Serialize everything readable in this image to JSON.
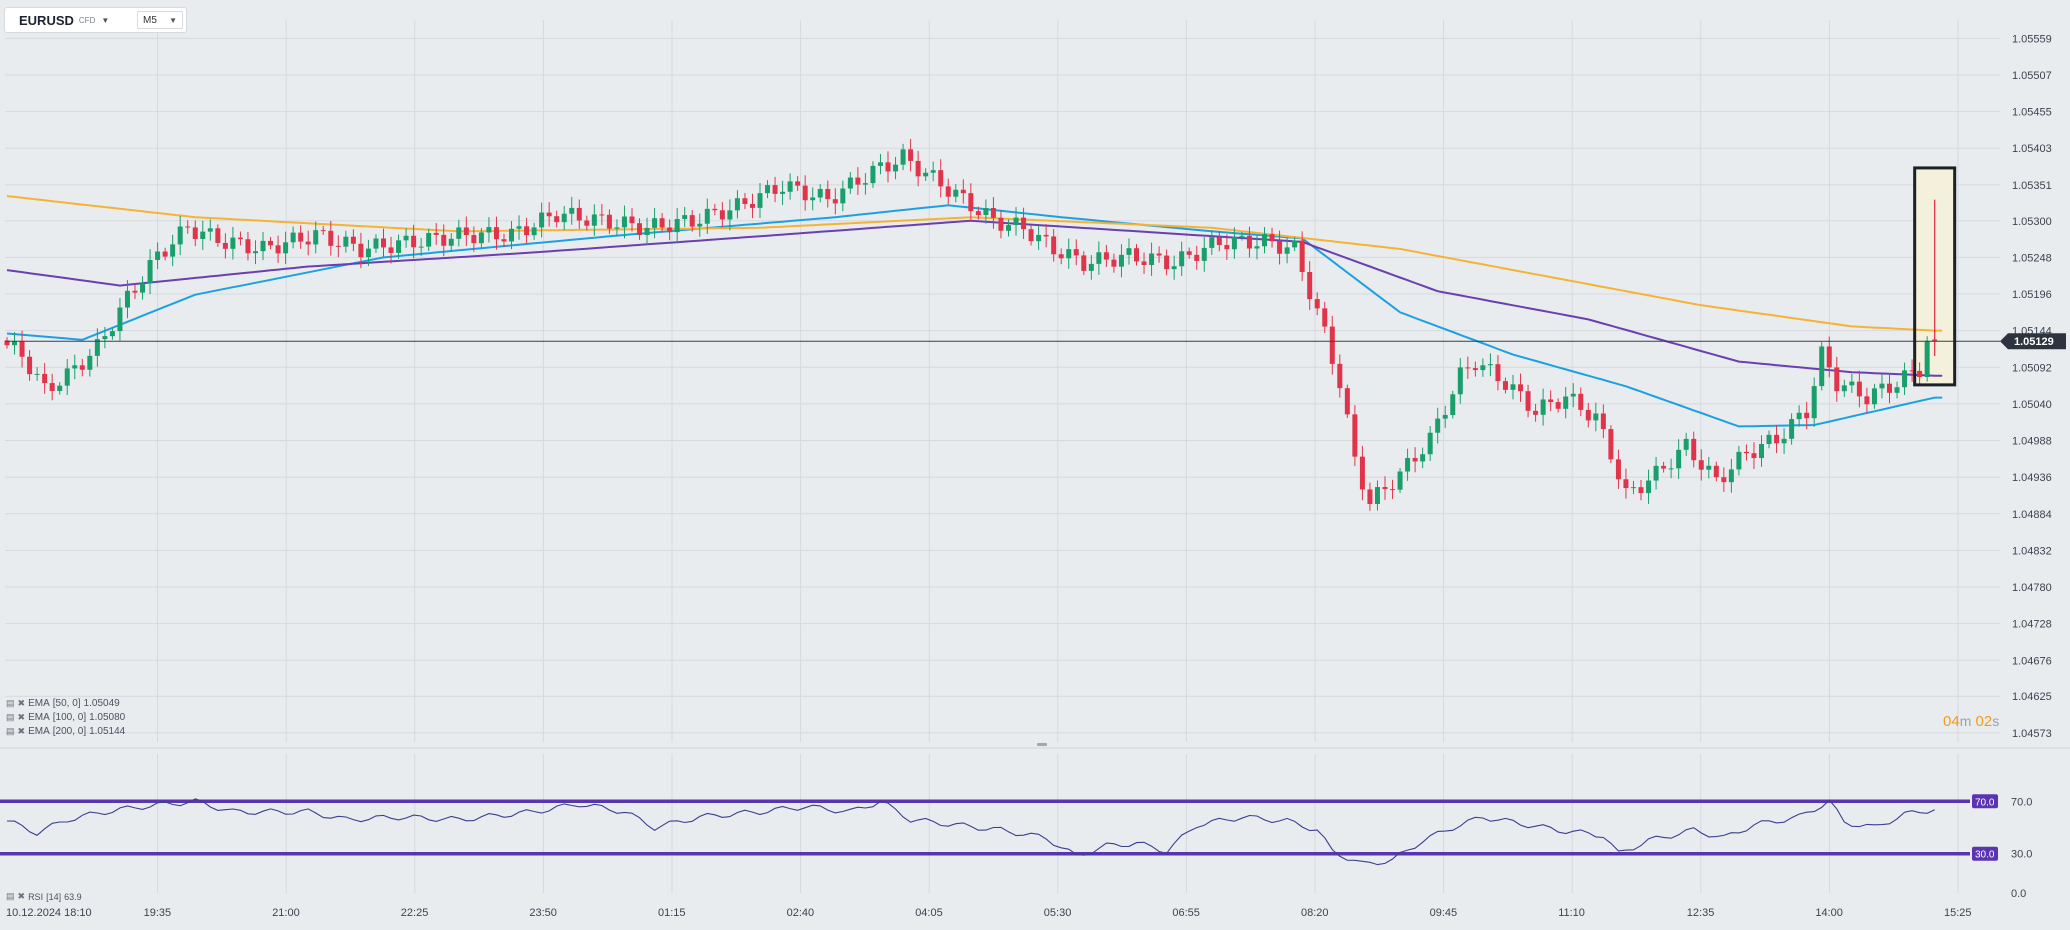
{
  "toolbar": {
    "symbol": "EURUSD",
    "instrument_type": "CFD",
    "timeframe": "M5",
    "symbol_dropdown_icon": "caret-down-icon",
    "timeframe_dropdown_icon": "caret-down-icon"
  },
  "legend": [
    {
      "name": "EMA",
      "params": "[50, 0]",
      "value": "1.05049",
      "color": "#1ba1e2"
    },
    {
      "name": "EMA",
      "params": "[100, 0]",
      "value": "1.05080",
      "color": "#6a3fb0"
    },
    {
      "name": "EMA",
      "params": "[200, 0]",
      "value": "1.05144",
      "color": "#f5b335"
    }
  ],
  "rsi_legend": {
    "name": "RSI",
    "params": "[14]",
    "value": "63.9"
  },
  "countdown": {
    "minutes": "04",
    "min_unit": "m",
    "seconds": "02",
    "sec_unit": "s"
  },
  "colors": {
    "up": "#1a9e6b",
    "down": "#e0344a",
    "rsi_line": "#3a3f8f",
    "rsi_level": "#5b34b0",
    "price_tag": "#2d3440",
    "highlight": "#f3f1dc"
  },
  "chart_data": {
    "type": "candlestick",
    "symbol": "EURUSD",
    "timeframe": "M5",
    "x_tick_labels": [
      "10.12.2024 18:10",
      "19:35",
      "21:00",
      "22:25",
      "23:50",
      "01:15",
      "02:40",
      "04:05",
      "05:30",
      "06:55",
      "08:20",
      "09:45",
      "11:10",
      "12:35",
      "14:00",
      "15:25"
    ],
    "y_tick_labels": [
      "1.05559",
      "1.05507",
      "1.05455",
      "1.05403",
      "1.05351",
      "1.05300",
      "1.05248",
      "1.05196",
      "1.05144",
      "1.05092",
      "1.05040",
      "1.04988",
      "1.04936",
      "1.04884",
      "1.04832",
      "1.04780",
      "1.04728",
      "1.04676",
      "1.04625",
      "1.04573"
    ],
    "ylim": [
      1.0456,
      1.05585
    ],
    "current_price": "1.05129",
    "price_anchors": [
      {
        "t": 0,
        "p": 1.0513
      },
      {
        "t": 3,
        "p": 1.0511
      },
      {
        "t": 6,
        "p": 1.0506
      },
      {
        "t": 9,
        "p": 1.0508
      },
      {
        "t": 13,
        "p": 1.0512
      },
      {
        "t": 17,
        "p": 1.0519
      },
      {
        "t": 21,
        "p": 1.0525
      },
      {
        "t": 25,
        "p": 1.0529
      },
      {
        "t": 30,
        "p": 1.0527
      },
      {
        "t": 35,
        "p": 1.0526
      },
      {
        "t": 42,
        "p": 1.0528
      },
      {
        "t": 48,
        "p": 1.0526
      },
      {
        "t": 55,
        "p": 1.0527
      },
      {
        "t": 62,
        "p": 1.0528
      },
      {
        "t": 68,
        "p": 1.0528
      },
      {
        "t": 74,
        "p": 1.0531
      },
      {
        "t": 80,
        "p": 1.053
      },
      {
        "t": 86,
        "p": 1.0529
      },
      {
        "t": 92,
        "p": 1.053
      },
      {
        "t": 98,
        "p": 1.0532
      },
      {
        "t": 104,
        "p": 1.0535
      },
      {
        "t": 110,
        "p": 1.0533
      },
      {
        "t": 116,
        "p": 1.0537
      },
      {
        "t": 120,
        "p": 1.0539
      },
      {
        "t": 124,
        "p": 1.0536
      },
      {
        "t": 128,
        "p": 1.0533
      },
      {
        "t": 132,
        "p": 1.053
      },
      {
        "t": 136,
        "p": 1.0529
      },
      {
        "t": 140,
        "p": 1.0526
      },
      {
        "t": 144,
        "p": 1.0524
      },
      {
        "t": 150,
        "p": 1.0525
      },
      {
        "t": 156,
        "p": 1.0524
      },
      {
        "t": 162,
        "p": 1.0527
      },
      {
        "t": 168,
        "p": 1.0527
      },
      {
        "t": 172,
        "p": 1.0526
      },
      {
        "t": 174,
        "p": 1.052
      },
      {
        "t": 176,
        "p": 1.0514
      },
      {
        "t": 178,
        "p": 1.0507
      },
      {
        "t": 180,
        "p": 1.0496
      },
      {
        "t": 182,
        "p": 1.049
      },
      {
        "t": 186,
        "p": 1.0494
      },
      {
        "t": 190,
        "p": 1.0499
      },
      {
        "t": 194,
        "p": 1.0508
      },
      {
        "t": 196,
        "p": 1.051
      },
      {
        "t": 200,
        "p": 1.0507
      },
      {
        "t": 204,
        "p": 1.0503
      },
      {
        "t": 208,
        "p": 1.0505
      },
      {
        "t": 212,
        "p": 1.0502
      },
      {
        "t": 214,
        "p": 1.0497
      },
      {
        "t": 216,
        "p": 1.0491
      },
      {
        "t": 220,
        "p": 1.0494
      },
      {
        "t": 224,
        "p": 1.0498
      },
      {
        "t": 228,
        "p": 1.0493
      },
      {
        "t": 232,
        "p": 1.0497
      },
      {
        "t": 236,
        "p": 1.0499
      },
      {
        "t": 240,
        "p": 1.0503
      },
      {
        "t": 242,
        "p": 1.0511
      },
      {
        "t": 244,
        "p": 1.0507
      },
      {
        "t": 248,
        "p": 1.0505
      },
      {
        "t": 252,
        "p": 1.0507
      },
      {
        "t": 255,
        "p": 1.0509
      },
      {
        "t": 256,
        "p": 1.0513
      }
    ],
    "ema_series": [
      {
        "name": "EMA [50, 0]",
        "color": "#1ba1e2",
        "points": [
          {
            "t": 0,
            "p": 1.0514
          },
          {
            "t": 10,
            "p": 1.05131
          },
          {
            "t": 25,
            "p": 1.05195
          },
          {
            "t": 50,
            "p": 1.05248
          },
          {
            "t": 80,
            "p": 1.05278
          },
          {
            "t": 110,
            "p": 1.05305
          },
          {
            "t": 125,
            "p": 1.05322
          },
          {
            "t": 140,
            "p": 1.05305
          },
          {
            "t": 160,
            "p": 1.05285
          },
          {
            "t": 172,
            "p": 1.05275
          },
          {
            "t": 185,
            "p": 1.0517
          },
          {
            "t": 200,
            "p": 1.0511
          },
          {
            "t": 215,
            "p": 1.05065
          },
          {
            "t": 230,
            "p": 1.05008
          },
          {
            "t": 240,
            "p": 1.0501
          },
          {
            "t": 256,
            "p": 1.05049
          }
        ]
      },
      {
        "name": "EMA [100, 0]",
        "color": "#6a3fb0",
        "points": [
          {
            "t": 0,
            "p": 1.0523
          },
          {
            "t": 15,
            "p": 1.05208
          },
          {
            "t": 40,
            "p": 1.05235
          },
          {
            "t": 70,
            "p": 1.05255
          },
          {
            "t": 100,
            "p": 1.05278
          },
          {
            "t": 128,
            "p": 1.053
          },
          {
            "t": 150,
            "p": 1.05285
          },
          {
            "t": 172,
            "p": 1.0527
          },
          {
            "t": 190,
            "p": 1.052
          },
          {
            "t": 210,
            "p": 1.0516
          },
          {
            "t": 230,
            "p": 1.051
          },
          {
            "t": 245,
            "p": 1.05085
          },
          {
            "t": 256,
            "p": 1.0508
          }
        ]
      },
      {
        "name": "EMA [200, 0]",
        "color": "#f5b335",
        "points": [
          {
            "t": 0,
            "p": 1.05335
          },
          {
            "t": 25,
            "p": 1.05305
          },
          {
            "t": 60,
            "p": 1.05285
          },
          {
            "t": 100,
            "p": 1.0529
          },
          {
            "t": 128,
            "p": 1.05305
          },
          {
            "t": 160,
            "p": 1.0529
          },
          {
            "t": 185,
            "p": 1.0526
          },
          {
            "t": 205,
            "p": 1.0522
          },
          {
            "t": 225,
            "p": 1.0518
          },
          {
            "t": 245,
            "p": 1.0515
          },
          {
            "t": 256,
            "p": 1.05144
          }
        ]
      }
    ],
    "highlighted_candle": {
      "t": 256,
      "high": 1.0533,
      "low": 1.05108,
      "close": 1.0513
    },
    "rsi": {
      "ylim": [
        0,
        100
      ],
      "levels": [
        70,
        30
      ],
      "tick_labels": [
        "70.0",
        "30.0",
        "0.0"
      ],
      "points": [
        {
          "t": 0,
          "v": 55
        },
        {
          "t": 4,
          "v": 46
        },
        {
          "t": 8,
          "v": 56
        },
        {
          "t": 13,
          "v": 62
        },
        {
          "t": 18,
          "v": 66
        },
        {
          "t": 25,
          "v": 70
        },
        {
          "t": 30,
          "v": 62
        },
        {
          "t": 40,
          "v": 62
        },
        {
          "t": 45,
          "v": 56
        },
        {
          "t": 52,
          "v": 58
        },
        {
          "t": 60,
          "v": 56
        },
        {
          "t": 70,
          "v": 62
        },
        {
          "t": 76,
          "v": 68
        },
        {
          "t": 82,
          "v": 62
        },
        {
          "t": 86,
          "v": 50
        },
        {
          "t": 92,
          "v": 58
        },
        {
          "t": 100,
          "v": 62
        },
        {
          "t": 106,
          "v": 66
        },
        {
          "t": 112,
          "v": 62
        },
        {
          "t": 116,
          "v": 70
        },
        {
          "t": 120,
          "v": 56
        },
        {
          "t": 126,
          "v": 52
        },
        {
          "t": 132,
          "v": 48
        },
        {
          "t": 138,
          "v": 42
        },
        {
          "t": 142,
          "v": 28
        },
        {
          "t": 146,
          "v": 36
        },
        {
          "t": 150,
          "v": 38
        },
        {
          "t": 154,
          "v": 32
        },
        {
          "t": 158,
          "v": 52
        },
        {
          "t": 164,
          "v": 58
        },
        {
          "t": 170,
          "v": 55
        },
        {
          "t": 174,
          "v": 48
        },
        {
          "t": 176,
          "v": 32
        },
        {
          "t": 180,
          "v": 22
        },
        {
          "t": 184,
          "v": 25
        },
        {
          "t": 188,
          "v": 40
        },
        {
          "t": 192,
          "v": 50
        },
        {
          "t": 196,
          "v": 58
        },
        {
          "t": 202,
          "v": 52
        },
        {
          "t": 206,
          "v": 48
        },
        {
          "t": 212,
          "v": 44
        },
        {
          "t": 214,
          "v": 30
        },
        {
          "t": 218,
          "v": 40
        },
        {
          "t": 224,
          "v": 48
        },
        {
          "t": 228,
          "v": 42
        },
        {
          "t": 232,
          "v": 52
        },
        {
          "t": 238,
          "v": 58
        },
        {
          "t": 242,
          "v": 70
        },
        {
          "t": 244,
          "v": 54
        },
        {
          "t": 248,
          "v": 50
        },
        {
          "t": 252,
          "v": 60
        },
        {
          "t": 256,
          "v": 64
        }
      ]
    }
  }
}
